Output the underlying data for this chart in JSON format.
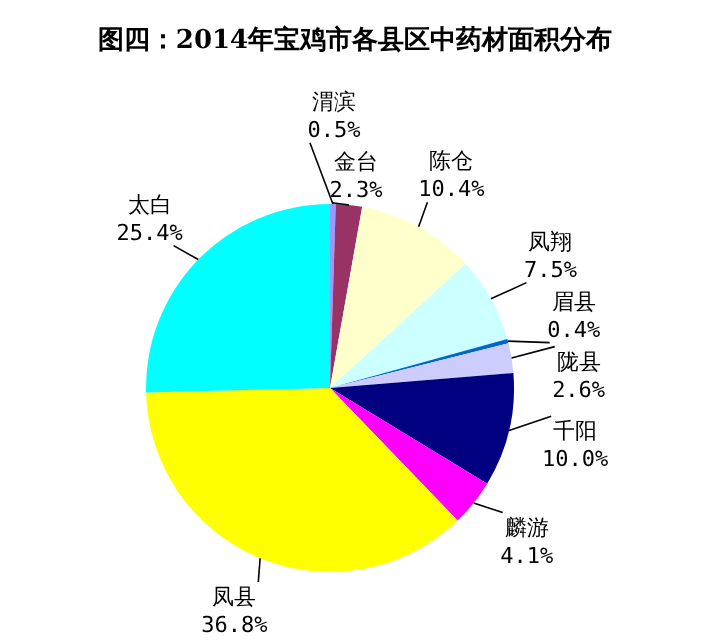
{
  "chart_data": {
    "type": "pie",
    "title": "图四：2014年宝鸡市各县区中药材面积分布",
    "categories": [
      "渭滨",
      "金台",
      "陈仓",
      "凤翔",
      "眉县",
      "陇县",
      "千阳",
      "麟游",
      "凤县",
      "太白"
    ],
    "values": [
      0.5,
      2.3,
      10.4,
      7.5,
      0.4,
      2.6,
      10.0,
      4.1,
      36.8,
      25.4
    ],
    "value_labels": [
      "0.5%",
      "2.3%",
      "10.4%",
      "7.5%",
      "0.4%",
      "2.6%",
      "10.0%",
      "4.1%",
      "36.8%",
      "25.4%"
    ],
    "colors": [
      "#9999ff",
      "#993366",
      "#ffffcc",
      "#ccffff",
      "#0066cc",
      "#ccccff",
      "#000080",
      "#ff00ff",
      "#ffff00",
      "#00ffff"
    ]
  }
}
